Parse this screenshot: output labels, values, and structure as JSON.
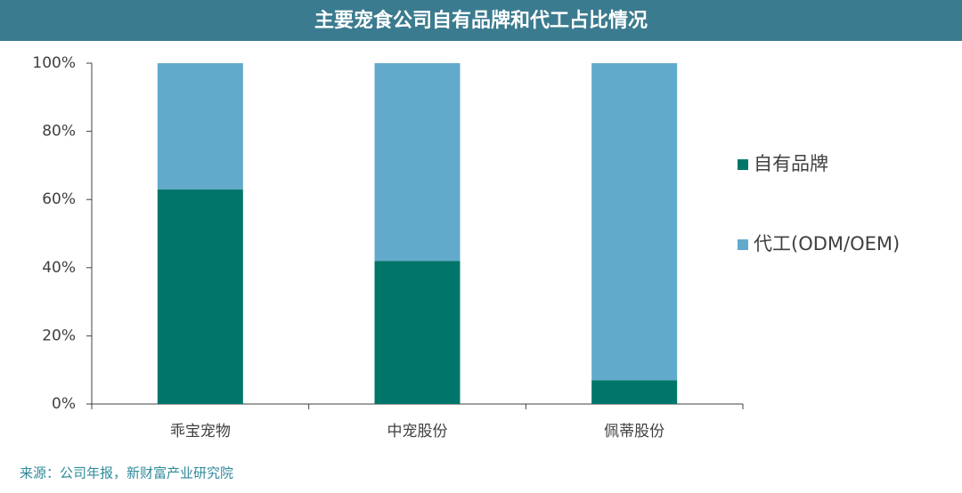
{
  "chart_data": {
    "type": "stacked_bar",
    "title": "主要宠食公司自有品牌和代工占比情况",
    "categories": [
      "乖宝宠物",
      "中宠股份",
      "佩蒂股份"
    ],
    "series": [
      {
        "name": "自有品牌",
        "color": "#00766a",
        "values": [
          63,
          42,
          7
        ]
      },
      {
        "name": "代工(ODM/OEM)",
        "color": "#62aacb",
        "values": [
          37,
          58,
          93
        ]
      }
    ],
    "ylim": [
      0,
      100
    ],
    "yticks": [
      {
        "value": 0,
        "label": "0%"
      },
      {
        "value": 20,
        "label": "20%"
      },
      {
        "value": 40,
        "label": "40%"
      },
      {
        "value": 60,
        "label": "60%"
      },
      {
        "value": 80,
        "label": "80%"
      },
      {
        "value": 100,
        "label": "100%"
      }
    ],
    "legend": "right",
    "source": "来源：公司年报，新财富产业研究院"
  }
}
